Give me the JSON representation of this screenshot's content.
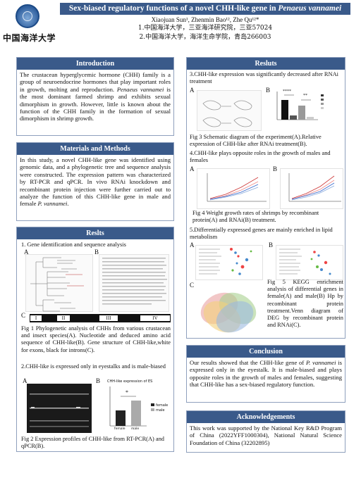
{
  "header": {
    "logo_text": "中国海洋大学",
    "title": "Sex-biased regulatory functions of a novel CHH-like gene in Penaeus vannamei",
    "authors": "Xiaojuan Sun¹, Zhenmin Bao¹², Zhe Qu¹²*",
    "aff1": "1.中国海洋大学，三亚海洋研究院，三亚57024",
    "aff2": "2.中国海洋大学，海洋生命学院，青岛266003"
  },
  "introduction": {
    "heading": "Introduction",
    "text": "The crustacean hyperglycemic hormone (CHH) family is a group of neuroendocrine hormones that play important roles in growth, molting and reproduction. Penaeus vannamei is the most dominant farmed shrimp and exhibits sexual dimorphism in growth. However, little is known about the function of the CHH family in the formation of sexual dimorphism in shrimp growth."
  },
  "methods": {
    "heading": "Materials and Methods",
    "text": "In this study, a novel CHH-like gene was identified using genomic data, and a phylogenetic tree and sequence analysis were constructed. The expression pattern was characterized by RT-PCR and qPCR. In vivo RNAi knockdown and recombinant protein injection were further carried out to analyze the function of this CHH-like gene in male and female P. vannamei."
  },
  "results_left": {
    "heading": "Reslts",
    "s1": "1. Gene identification and sequence analysis",
    "fig1_caption": "Fig 1 Phylogenetic analysis of CHHs from various crustacean and insect species(A). Nucleotide and deduced amino acid sequence of CHH-like(B). Gene structure of CHH-like,white for exons, black for introns(C).",
    "s2": "2.CHH-like is expressed only in eyestalks and is male-biased",
    "fig2_caption": "Fig 2  Expression profiles of CHH-like from RT-PCR(A) and qPCR(B).",
    "label_a": "A",
    "label_b": "B",
    "label_c": "C",
    "gene_exons": [
      "I",
      "II",
      "III",
      "IV"
    ],
    "qpcr_title": "CHH-like expression of ES",
    "qpcr_legend": [
      "female",
      "male"
    ],
    "qpcr_star": "*"
  },
  "results_right": {
    "heading": "Resluts",
    "s3": "3.CHH-like expression was significantly decreased after RNAi treatment",
    "fig3_caption": "Fig 3 Schematic diagram of the experiment(A).Relative expression of CHH-like after RNAi treatment(B).",
    "s4": "4.CHH-like plays opposite roles in the growth of males and females",
    "fig4_caption": "Fig 4 Weight growth rates of shrimps by recombinant protein(A) and RNAi(B) treatment.",
    "s5": "5.Differentially expressed genes are mainly enriched in lipid metabolism",
    "fig5_caption": "Fig 5 KEGG enrichment analysis of differential genes in female(A) and male(B) Hp by recombinant protein treatment.Venn diagram of DEG by recombinant protein and RNAi(C).",
    "label_a": "A",
    "label_b": "B",
    "label_c": "C",
    "fig3_stars": [
      "****",
      "**"
    ]
  },
  "conclusion": {
    "heading": "Conclusion",
    "text": "Our results showed that the CHH-like gene of P. vannamei is expressed only in the eyestalk. It is male-biased and plays opposite roles in the growth of males and females, suggesting that CHH-like has a sex-biased regulatory function."
  },
  "acknowledgements": {
    "heading": "Acknowledgements",
    "text": "This work was supported by the National Key R&D Program of China (2022YFF1000304), National Natural Science Foundation of China (32202895)"
  },
  "colors": {
    "header_bar": "#3a5a8a",
    "border": "#8fa0bd"
  }
}
